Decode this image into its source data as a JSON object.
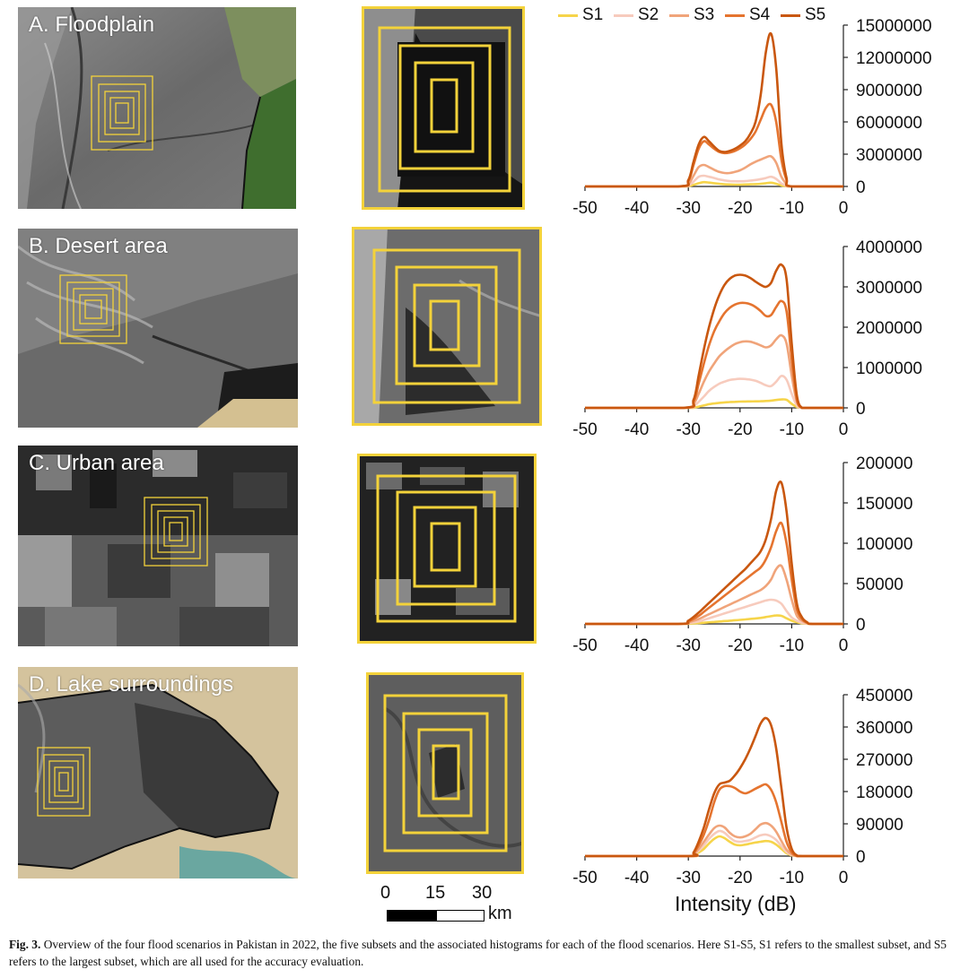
{
  "legend": [
    {
      "name": "S1",
      "color": "#f6d44a"
    },
    {
      "name": "S2",
      "color": "#f7cbbd"
    },
    {
      "name": "S3",
      "color": "#f0a47a"
    },
    {
      "name": "S4",
      "color": "#e5742f"
    },
    {
      "name": "S5",
      "color": "#c9570f"
    }
  ],
  "panels": [
    {
      "label": "A. Floodplain"
    },
    {
      "label": "B. Desert area"
    },
    {
      "label": "C. Urban area"
    },
    {
      "label": "D. Lake surroundings"
    }
  ],
  "scale_bar": {
    "ticks": [
      "0",
      "15",
      "30"
    ],
    "unit": "km"
  },
  "x_axis_title": "Intensity (dB)",
  "caption": {
    "label": "Fig. 3.",
    "text": "Overview of the four flood scenarios in Pakistan in 2022, the five subsets and the associated histograms for each of the flood scenarios. Here S1-S5, S1 refers to the smallest subset, and S5 refers to the largest subset, which are all used for the accuracy evaluation."
  },
  "chart_data": [
    {
      "type": "line",
      "x": [
        -50,
        -32,
        -30,
        -29,
        -28,
        -27,
        -26,
        -25,
        -24,
        -23,
        -22,
        -21,
        -20,
        -19,
        -18,
        -17,
        -16,
        -15,
        -14,
        -13,
        -12,
        -11,
        -10,
        0
      ],
      "xticks": [
        "-50",
        "-40",
        "-30",
        "-20",
        "-10",
        "0"
      ],
      "ylim": [
        0,
        15000000
      ],
      "yticks": [
        "0",
        "3000000",
        "6000000",
        "9000000",
        "12000000",
        "15000000"
      ],
      "series": [
        {
          "name": "S1",
          "values": [
            0,
            0,
            40000,
            150000,
            300000,
            400000,
            360000,
            300000,
            250000,
            200000,
            180000,
            170000,
            170000,
            180000,
            200000,
            220000,
            250000,
            300000,
            350000,
            250000,
            100000,
            30000,
            0,
            0
          ]
        },
        {
          "name": "S2",
          "values": [
            0,
            0,
            120000,
            450000,
            900000,
            1000000,
            900000,
            780000,
            650000,
            560000,
            500000,
            480000,
            480000,
            500000,
            540000,
            600000,
            680000,
            780000,
            900000,
            700000,
            280000,
            80000,
            0,
            0
          ]
        },
        {
          "name": "S3",
          "values": [
            0,
            0,
            250000,
            1000000,
            1800000,
            2000000,
            1800000,
            1550000,
            1350000,
            1250000,
            1250000,
            1350000,
            1500000,
            1750000,
            2050000,
            2300000,
            2500000,
            2700000,
            2800000,
            2200000,
            900000,
            250000,
            0,
            0
          ]
        },
        {
          "name": "S4",
          "values": [
            0,
            0,
            500000,
            2000000,
            3500000,
            4200000,
            3900000,
            3500000,
            3200000,
            3100000,
            3150000,
            3300000,
            3550000,
            3900000,
            4400000,
            5100000,
            6200000,
            7300000,
            7600000,
            6000000,
            2500000,
            600000,
            0,
            0
          ]
        },
        {
          "name": "S5",
          "values": [
            0,
            0,
            600000,
            2300000,
            3900000,
            4600000,
            4200000,
            3700000,
            3300000,
            3200000,
            3300000,
            3500000,
            3800000,
            4200000,
            4900000,
            6000000,
            8500000,
            12500000,
            14200000,
            11000000,
            4000000,
            800000,
            0,
            0
          ]
        }
      ]
    },
    {
      "type": "line",
      "x": [
        -50,
        -31,
        -29,
        -28,
        -27,
        -26,
        -25,
        -24,
        -23,
        -22,
        -21,
        -20,
        -19,
        -18,
        -17,
        -16,
        -15,
        -14,
        -13,
        -12,
        -11,
        -10,
        -9,
        -8,
        -7,
        0
      ],
      "xticks": [
        "-50",
        "-40",
        "-30",
        "-20",
        "-10",
        "0"
      ],
      "ylim": [
        0,
        4000000
      ],
      "yticks": [
        "0",
        "1000000",
        "2000000",
        "3000000",
        "4000000"
      ],
      "series": [
        {
          "name": "S1",
          "values": [
            0,
            0,
            10000,
            30000,
            60000,
            90000,
            110000,
            125000,
            135000,
            145000,
            150000,
            155000,
            158000,
            160000,
            162000,
            165000,
            170000,
            180000,
            195000,
            210000,
            200000,
            100000,
            20000,
            0,
            0,
            0
          ]
        },
        {
          "name": "S2",
          "values": [
            0,
            0,
            50000,
            150000,
            280000,
            420000,
            520000,
            600000,
            650000,
            690000,
            710000,
            720000,
            715000,
            700000,
            670000,
            620000,
            560000,
            540000,
            650000,
            790000,
            700000,
            350000,
            60000,
            0,
            0,
            0
          ]
        },
        {
          "name": "S3",
          "values": [
            0,
            0,
            100000,
            350000,
            650000,
            900000,
            1100000,
            1280000,
            1400000,
            1500000,
            1580000,
            1630000,
            1650000,
            1640000,
            1600000,
            1550000,
            1500000,
            1550000,
            1700000,
            1800000,
            1600000,
            800000,
            150000,
            0,
            0,
            0
          ]
        },
        {
          "name": "S4",
          "values": [
            0,
            0,
            150000,
            600000,
            1100000,
            1550000,
            1900000,
            2150000,
            2350000,
            2480000,
            2560000,
            2600000,
            2600000,
            2570000,
            2500000,
            2400000,
            2280000,
            2300000,
            2500000,
            2650000,
            2400000,
            1200000,
            200000,
            0,
            0,
            0
          ]
        },
        {
          "name": "S5",
          "values": [
            0,
            0,
            200000,
            800000,
            1450000,
            2000000,
            2450000,
            2800000,
            3050000,
            3200000,
            3280000,
            3300000,
            3280000,
            3220000,
            3130000,
            3050000,
            3000000,
            3100000,
            3400000,
            3550000,
            3200000,
            1600000,
            300000,
            0,
            0,
            0
          ]
        }
      ]
    },
    {
      "type": "line",
      "x": [
        -50,
        -32,
        -30,
        -28,
        -27,
        -26,
        -25,
        -24,
        -23,
        -22,
        -21,
        -20,
        -19,
        -18,
        -17,
        -16,
        -15,
        -14,
        -13,
        -12,
        -11,
        -10,
        -9,
        -8,
        -7,
        -6,
        0
      ],
      "xticks": [
        "-50",
        "-40",
        "-30",
        "-20",
        "-10",
        "0"
      ],
      "ylim": [
        0,
        200000
      ],
      "yticks": [
        "0",
        "50000",
        "100000",
        "150000",
        "200000"
      ],
      "series": [
        {
          "name": "S1",
          "values": [
            0,
            0,
            300,
            1000,
            1500,
            2000,
            2500,
            3000,
            3500,
            4000,
            4500,
            5000,
            5600,
            6200,
            6800,
            7500,
            8500,
            9500,
            10500,
            10000,
            7000,
            4000,
            2000,
            800,
            200,
            0,
            0
          ]
        },
        {
          "name": "S2",
          "values": [
            0,
            0,
            1000,
            3000,
            5000,
            7000,
            9000,
            11000,
            13000,
            15000,
            17000,
            19000,
            21000,
            23000,
            25000,
            27000,
            29000,
            30000,
            29000,
            25000,
            16000,
            8000,
            4000,
            1500,
            400,
            0,
            0
          ]
        },
        {
          "name": "S3",
          "values": [
            0,
            0,
            2000,
            6000,
            9000,
            12000,
            15000,
            18000,
            21000,
            24000,
            27000,
            30000,
            33000,
            36000,
            39000,
            42000,
            47000,
            55000,
            68000,
            72000,
            55000,
            30000,
            10000,
            4000,
            1000,
            0,
            0
          ]
        },
        {
          "name": "S4",
          "values": [
            0,
            0,
            3000,
            10000,
            15000,
            20000,
            25000,
            30000,
            35000,
            40000,
            45000,
            50000,
            55000,
            60000,
            65000,
            70000,
            80000,
            95000,
            115000,
            125000,
            100000,
            55000,
            18000,
            6000,
            1500,
            0,
            0
          ]
        },
        {
          "name": "S5",
          "values": [
            0,
            0,
            4000,
            14000,
            20000,
            26000,
            32000,
            38000,
            44000,
            50000,
            56000,
            62000,
            68000,
            75000,
            82000,
            90000,
            105000,
            130000,
            165000,
            175000,
            140000,
            75000,
            25000,
            8000,
            2000,
            0,
            0
          ]
        }
      ]
    },
    {
      "type": "line",
      "x": [
        -50,
        -30,
        -29,
        -28,
        -27,
        -26,
        -25,
        -24,
        -23,
        -22,
        -21,
        -20,
        -19,
        -18,
        -17,
        -16,
        -15,
        -14,
        -13,
        -12,
        -11,
        -10,
        -9,
        -8,
        0
      ],
      "xticks": [
        "-50",
        "-40",
        "-30",
        "-20",
        "-10",
        "0"
      ],
      "ylim": [
        0,
        450000
      ],
      "yticks": [
        "0",
        "90000",
        "180000",
        "270000",
        "360000",
        "450000"
      ],
      "series": [
        {
          "name": "S1",
          "values": [
            0,
            0,
            3000,
            10000,
            20000,
            35000,
            48000,
            55000,
            50000,
            40000,
            32000,
            30000,
            32000,
            35000,
            38000,
            40000,
            42000,
            40000,
            32000,
            20000,
            8000,
            2000,
            0,
            0,
            0
          ]
        },
        {
          "name": "S2",
          "values": [
            0,
            0,
            4000,
            15000,
            30000,
            48000,
            62000,
            70000,
            65000,
            52000,
            42000,
            40000,
            42000,
            45000,
            52000,
            58000,
            60000,
            55000,
            45000,
            28000,
            12000,
            3000,
            0,
            0,
            0
          ]
        },
        {
          "name": "S3",
          "values": [
            0,
            0,
            5000,
            20000,
            40000,
            60000,
            78000,
            85000,
            80000,
            65000,
            55000,
            52000,
            55000,
            62000,
            75000,
            88000,
            92000,
            85000,
            68000,
            42000,
            18000,
            5000,
            0,
            0,
            0
          ]
        },
        {
          "name": "S4",
          "values": [
            0,
            0,
            8000,
            30000,
            60000,
            100000,
            150000,
            185000,
            195000,
            195000,
            190000,
            180000,
            175000,
            180000,
            188000,
            195000,
            200000,
            185000,
            150000,
            95000,
            40000,
            10000,
            0,
            0,
            0
          ]
        },
        {
          "name": "S5",
          "values": [
            0,
            0,
            10000,
            40000,
            80000,
            130000,
            175000,
            200000,
            205000,
            210000,
            225000,
            245000,
            270000,
            300000,
            335000,
            370000,
            385000,
            365000,
            300000,
            190000,
            80000,
            20000,
            2000,
            0,
            0
          ]
        }
      ]
    }
  ]
}
